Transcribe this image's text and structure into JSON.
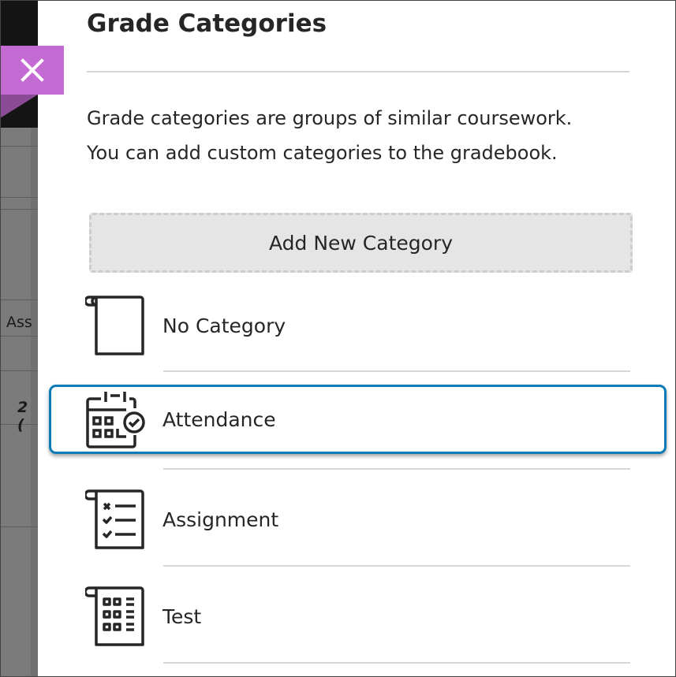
{
  "panel": {
    "title": "Grade Categories",
    "description_line1": "Grade categories are groups of similar coursework.",
    "description_line2": "You can add custom categories to the gradebook.",
    "add_button": "Add New Category"
  },
  "close": {
    "icon": "close-icon",
    "color": "#c46bd3"
  },
  "categories": [
    {
      "label": "No Category",
      "icon": "blank-page-icon",
      "selected": false
    },
    {
      "label": "Attendance",
      "icon": "calendar-check-icon",
      "selected": true
    },
    {
      "label": "Assignment",
      "icon": "checklist-icon",
      "selected": false
    },
    {
      "label": "Test",
      "icon": "test-grid-icon",
      "selected": false
    }
  ],
  "backdrop": {
    "text1": "Ass",
    "text2": "2 ("
  },
  "colors": {
    "accent_purple": "#c46bd3",
    "focus_blue": "#0a7ab8"
  }
}
